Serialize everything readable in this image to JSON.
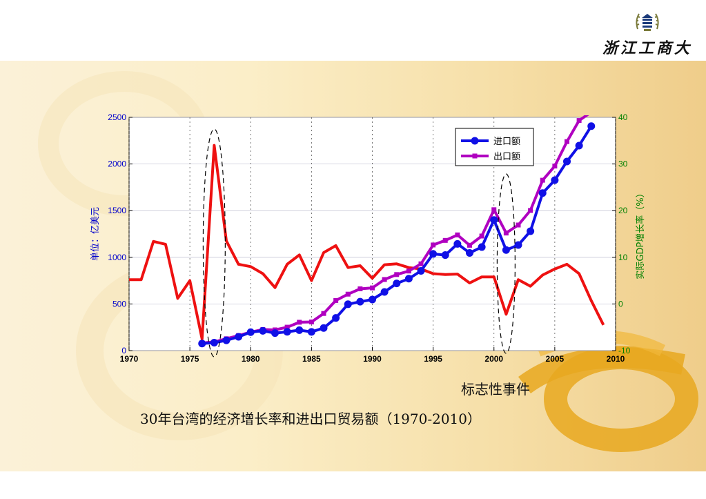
{
  "logo": {
    "text": "浙江工商大学",
    "icon": "university-seal-icon"
  },
  "caption": {
    "marker_note": "标志性事件",
    "title": "30年台湾的经济增长率和进出口贸易额（1970-2010）"
  },
  "chart_data": {
    "type": "line",
    "ylabel": "单位：亿美元",
    "y2label": "实际GDP增长率（%）",
    "xlim": [
      1970,
      2010
    ],
    "ylim": [
      0,
      2500
    ],
    "y2lim": [
      -10,
      40
    ],
    "x_ticks": [
      1970,
      1975,
      1980,
      1985,
      1990,
      1995,
      2000,
      2005,
      2010
    ],
    "y_ticks": [
      0,
      500,
      1000,
      1500,
      2000,
      2500
    ],
    "y2_ticks": [
      -10,
      0,
      10,
      20,
      30,
      40
    ],
    "grid": true,
    "legend_position": "top-right",
    "colors": {
      "import": "#1010e6",
      "export": "#b000c0",
      "gdp": "#ee1111",
      "y2axis": "#008000",
      "yaxis": "#0000cc"
    },
    "series": [
      {
        "name": "进口额",
        "axis": "left",
        "marker": "circle",
        "x": [
          1976,
          1977,
          1978,
          1979,
          1980,
          1981,
          1982,
          1983,
          1984,
          1985,
          1986,
          1987,
          1988,
          1989,
          1990,
          1991,
          1992,
          1993,
          1994,
          1995,
          1996,
          1997,
          1998,
          1999,
          2000,
          2001,
          2002,
          2003,
          2004,
          2005,
          2006,
          2007,
          2008
        ],
        "values": [
          76,
          85,
          110,
          148,
          198,
          212,
          188,
          202,
          219,
          201,
          242,
          350,
          497,
          524,
          547,
          629,
          720,
          771,
          854,
          1036,
          1024,
          1144,
          1047,
          1110,
          1400,
          1078,
          1132,
          1280,
          1688,
          1827,
          2027,
          2197,
          2406
        ]
      },
      {
        "name": "出口额",
        "axis": "left",
        "marker": "square",
        "x": [
          1976,
          1977,
          1978,
          1979,
          1980,
          1981,
          1982,
          1983,
          1984,
          1985,
          1986,
          1987,
          1988,
          1989,
          1990,
          1991,
          1992,
          1993,
          1994,
          1995,
          1996,
          1997,
          1998,
          1999,
          2000,
          2001,
          2002,
          2003,
          2004,
          2005,
          2006,
          2007,
          2008
        ],
        "values": [
          81,
          94,
          127,
          161,
          198,
          226,
          222,
          251,
          304,
          307,
          398,
          537,
          605,
          662,
          672,
          762,
          815,
          853,
          930,
          1132,
          1181,
          1240,
          1129,
          1228,
          1510,
          1260,
          1346,
          1502,
          1826,
          1978,
          2240,
          2466,
          2556
        ]
      },
      {
        "name": "",
        "axis": "right",
        "marker": "none",
        "x": [
          1970,
          1971,
          1972,
          1973,
          1974,
          1975,
          1976,
          1977,
          1978,
          1979,
          1980,
          1981,
          1982,
          1983,
          1984,
          1985,
          1986,
          1987,
          1988,
          1989,
          1990,
          1991,
          1992,
          1993,
          1994,
          1995,
          1996,
          1997,
          1998,
          1999,
          2000,
          2001,
          2002,
          2003,
          2004,
          2005,
          2006,
          2007,
          2008,
          2009
        ],
        "values": [
          5.2,
          5.2,
          13.4,
          12.8,
          1.2,
          5,
          -7.5,
          34,
          13.5,
          8.5,
          8,
          6.5,
          3.5,
          8.5,
          10.5,
          5,
          11,
          12.5,
          7.8,
          8.2,
          5.5,
          8.4,
          8.6,
          7.8,
          7.5,
          6.5,
          6.3,
          6.4,
          4.5,
          5.8,
          5.8,
          -2.2,
          5.2,
          3.8,
          6.2,
          7.5,
          8.5,
          6.5,
          0.7,
          -4.5
        ]
      }
    ],
    "markers": [
      {
        "type": "dashed-ellipse",
        "x": 1977
      },
      {
        "type": "dashed-ellipse",
        "x": 2001
      }
    ]
  }
}
